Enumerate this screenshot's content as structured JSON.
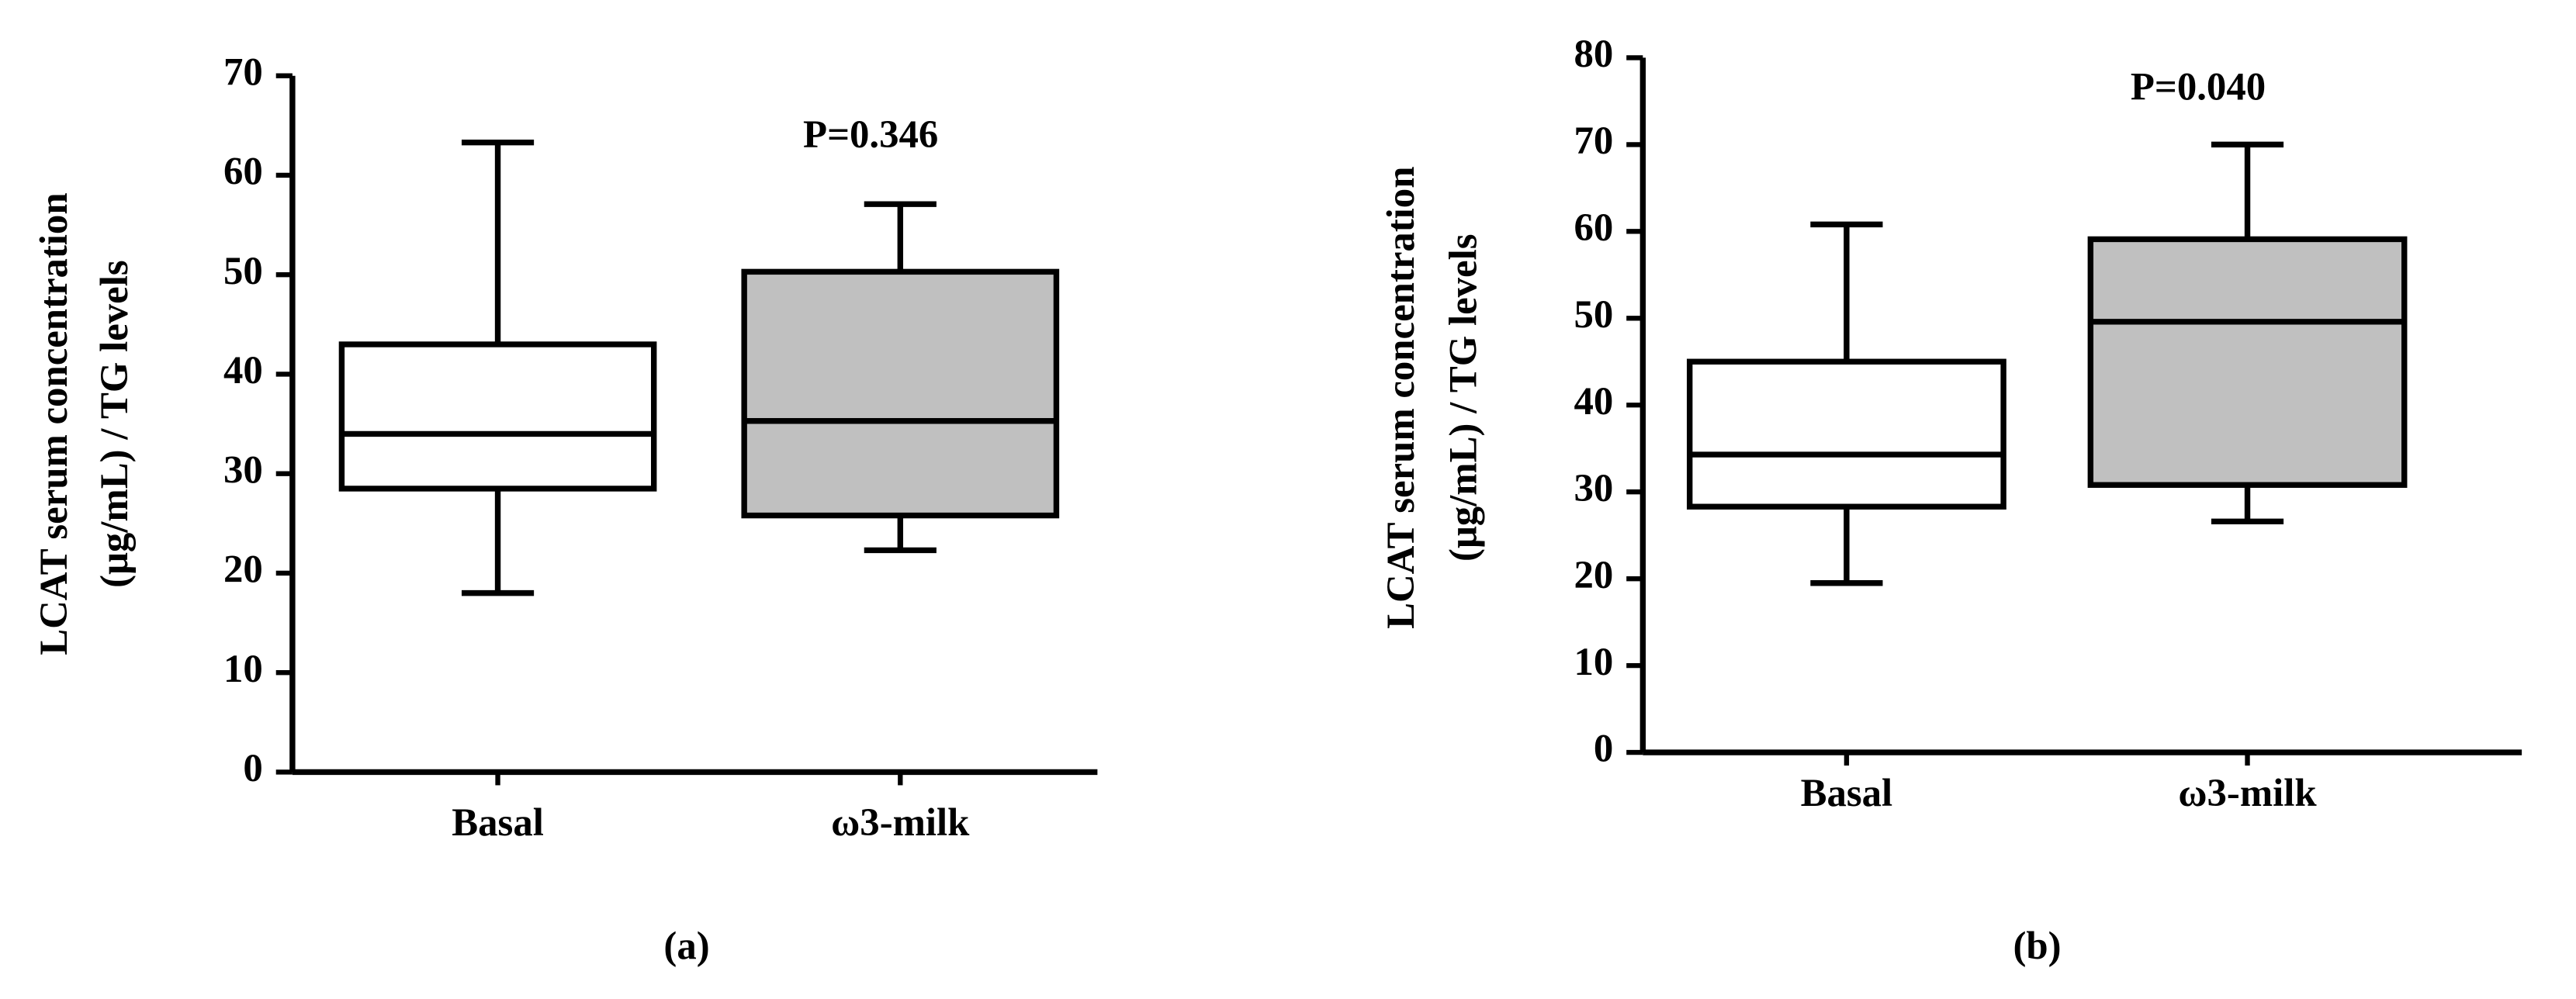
{
  "chart_data": [
    {
      "type": "box",
      "ylabel": [
        "LCAT serum concentration",
        "(μg/mL) / TG levels"
      ],
      "categories": [
        "Basal",
        "ω3-milk"
      ],
      "boxes": [
        {
          "min": 18,
          "q1": 28.5,
          "median": 34,
          "q3": 43,
          "max": 63.3,
          "color": "#ffffff"
        },
        {
          "min": 22.3,
          "q1": 25.8,
          "median": 35.3,
          "q3": 50.3,
          "max": 57.1,
          "color": "#c0c0c0"
        }
      ],
      "ylim": [
        0,
        70
      ],
      "yticks": [
        0,
        10,
        20,
        30,
        40,
        50,
        60,
        70
      ],
      "annotation": "P=0.346",
      "caption": "(a)"
    },
    {
      "type": "box",
      "ylabel": [
        "LCAT serum concentration",
        "(μg/mL) / TG levels"
      ],
      "categories": [
        "Basal",
        "ω3-milk"
      ],
      "boxes": [
        {
          "min": 19.5,
          "q1": 28.3,
          "median": 34.3,
          "q3": 45,
          "max": 60.8,
          "color": "#ffffff"
        },
        {
          "min": 26.6,
          "q1": 30.8,
          "median": 49.6,
          "q3": 59.1,
          "max": 70,
          "color": "#c0c0c0"
        }
      ],
      "ylim": [
        0,
        80
      ],
      "yticks": [
        0,
        10,
        20,
        30,
        40,
        50,
        60,
        70,
        80
      ],
      "annotation": "P=0.040",
      "caption": "(b)"
    }
  ]
}
